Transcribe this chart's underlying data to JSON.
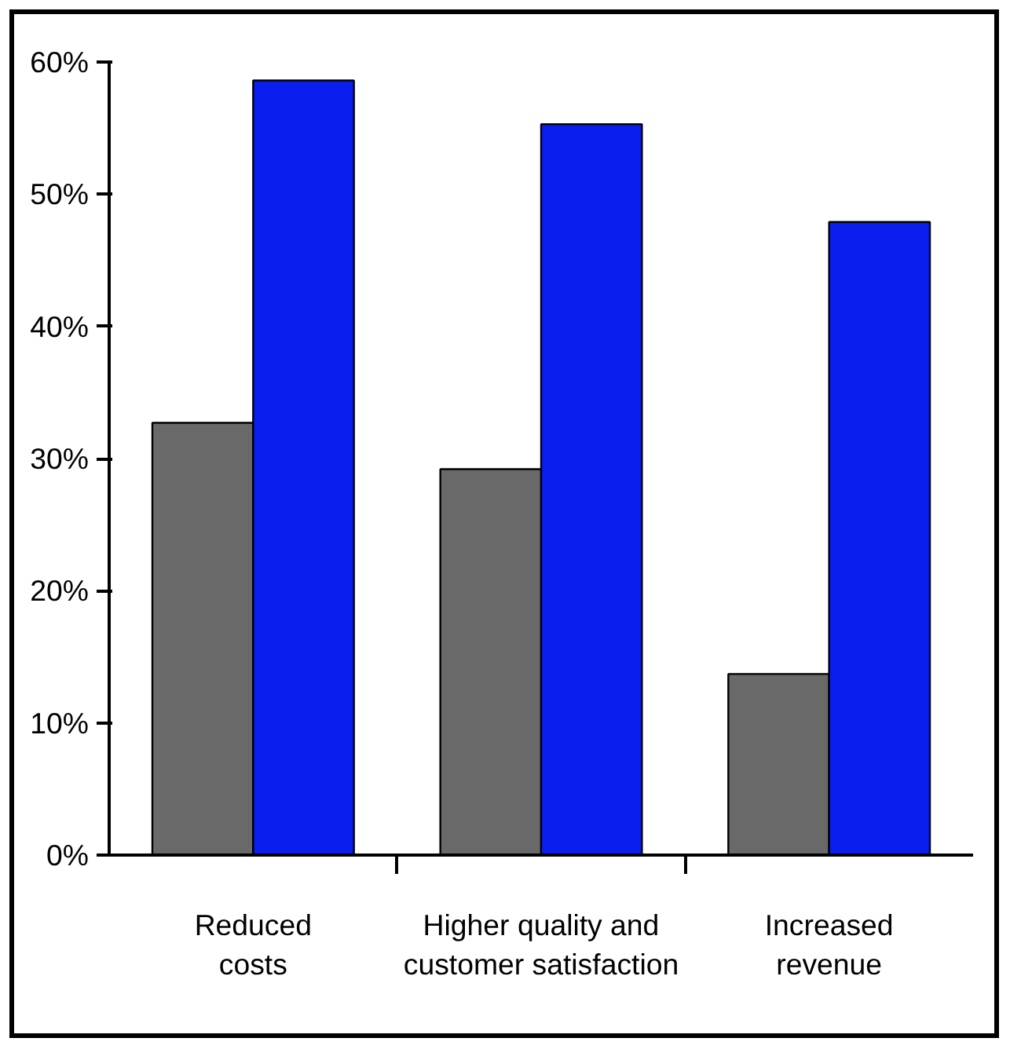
{
  "chart_data": {
    "type": "bar",
    "categories": [
      "Reduced\ncosts",
      "Higher quality and\ncustomer satisfaction",
      "Increased\nrevenue"
    ],
    "series": [
      {
        "color": "#696969",
        "values": [
          32.7,
          29.2,
          13.7
        ]
      },
      {
        "color": "#0a1ef0",
        "values": [
          58.6,
          55.3,
          47.9
        ]
      }
    ],
    "ylim": [
      0,
      60
    ],
    "yticks": [
      {
        "value": 0,
        "label": "0%"
      },
      {
        "value": 10,
        "label": "10%"
      },
      {
        "value": 20,
        "label": "20%"
      },
      {
        "value": 30,
        "label": "30%"
      },
      {
        "value": 40,
        "label": "40%"
      },
      {
        "value": 50,
        "label": "50%"
      },
      {
        "value": 60,
        "label": "60%"
      }
    ],
    "grid": false
  }
}
